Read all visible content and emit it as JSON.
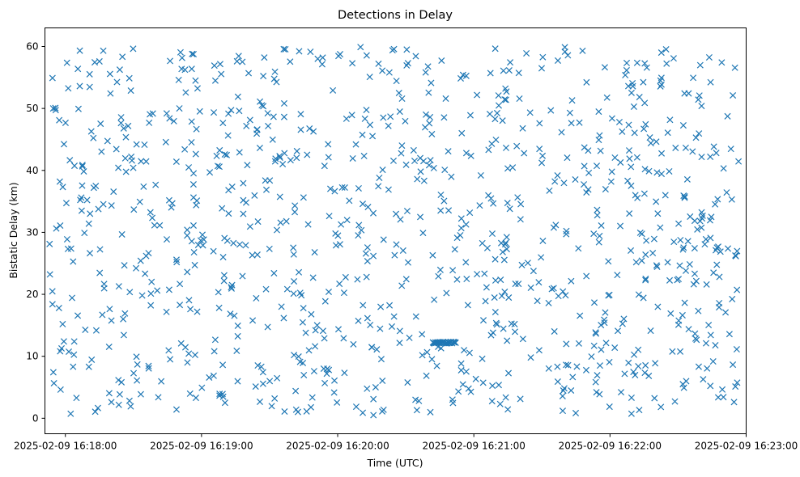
{
  "chart_data": {
    "type": "scatter",
    "title": "Detections in Delay",
    "xlabel": "Time (UTC)",
    "ylabel": "Bistatic Delay (km)",
    "marker": "x",
    "color": "#1f77b4",
    "grid": false,
    "xlim": [
      "2025-02-09 16:17:51",
      "2025-02-09 16:23:00"
    ],
    "ylim": [
      -2.5,
      63
    ],
    "x_ticks": [
      "2025-02-09 16:18:00",
      "2025-02-09 16:19:00",
      "2025-02-09 16:20:00",
      "2025-02-09 16:21:00",
      "2025-02-09 16:22:00",
      "2025-02-09 16:23:00"
    ],
    "y_ticks": [
      "0",
      "10",
      "20",
      "30",
      "40",
      "50",
      "60"
    ],
    "x_range": [
      "2025-02-09 16:17:53",
      "2025-02-09 16:22:57"
    ],
    "y_range": [
      0.5,
      60
    ],
    "approx_detection_count": 1000,
    "cluster": {
      "description": "dense horizontal run of detections",
      "y": 12.2,
      "x_start": "2025-02-09 16:20:42",
      "x_end": "2025-02-09 16:20:52"
    }
  }
}
